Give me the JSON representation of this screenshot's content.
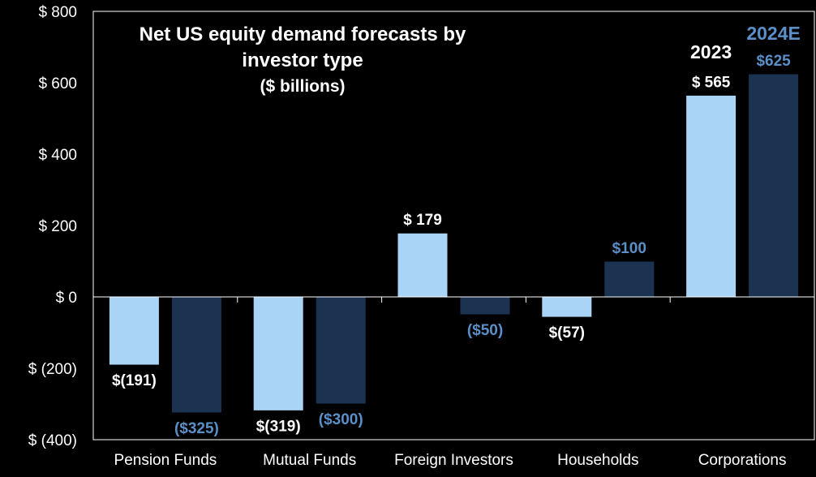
{
  "colors": {
    "background": "#000000",
    "series_2023": "#a9d4f5",
    "series_2024E": "#1b3350",
    "label_2024E": "#5b8fc7",
    "text": "#ffffff",
    "frame": "#ffffff"
  },
  "chart_data": {
    "type": "bar",
    "title_lines": [
      "Net US equity demand forecasts by",
      "investor type",
      "($ billions)"
    ],
    "categories": [
      "Pension Funds",
      "Mutual Funds",
      "Foreign Investors",
      "Households",
      "Corporations"
    ],
    "series": [
      {
        "name": "2023",
        "values": [
          -191,
          -319,
          179,
          -57,
          565
        ],
        "labels": [
          "$(191)",
          "$(319)",
          "$ 179",
          "$(57)",
          "$ 565"
        ]
      },
      {
        "name": "2024E",
        "values": [
          -325,
          -300,
          -50,
          100,
          625
        ],
        "labels": [
          "($325)",
          "($300)",
          "($50)",
          "$100",
          "$625"
        ]
      }
    ],
    "ylim": [
      -400,
      800
    ],
    "yticks": [
      800,
      600,
      400,
      200,
      0,
      -200,
      -400
    ],
    "ytick_labels": [
      "$ 800",
      "$ 600",
      "$ 400",
      "$ 200",
      "$ 0",
      "$ (200)",
      "$ (400)"
    ],
    "legend_placement": "above-last-category",
    "grid": false
  }
}
